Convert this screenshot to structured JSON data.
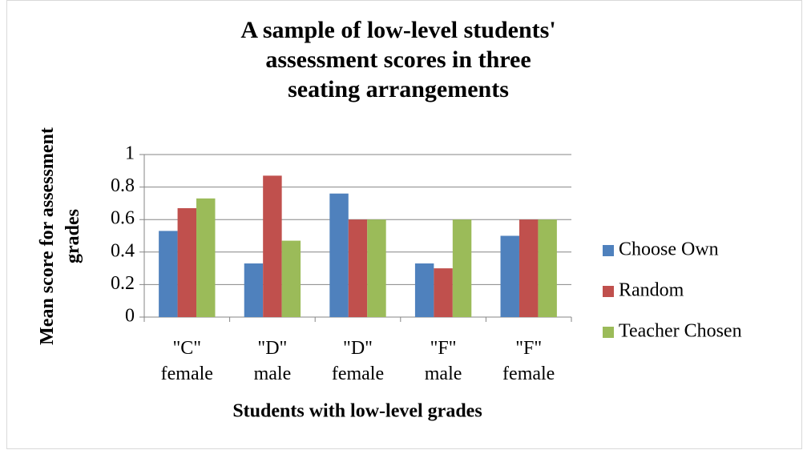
{
  "chart_data": {
    "type": "bar",
    "title": "A sample of low-level students'\nassessment scores in three\nseating arrangements",
    "xlabel": "Students with low-level grades",
    "ylabel": "Mean score for assessment\ngrades",
    "categories": [
      "\"C\"\nfemale",
      "\"D\"\nmale",
      "\"D\"\nfemale",
      "\"F\"\nmale",
      "\"F\"\nfemale"
    ],
    "series": [
      {
        "name": "Choose Own",
        "color": "#4f81bd",
        "values": [
          0.53,
          0.33,
          0.76,
          0.33,
          0.5
        ]
      },
      {
        "name": "Random",
        "color": "#c0504d",
        "values": [
          0.67,
          0.87,
          0.6,
          0.3,
          0.6
        ]
      },
      {
        "name": "Teacher Chosen",
        "color": "#9bbb59",
        "values": [
          0.73,
          0.47,
          0.6,
          0.6,
          0.6
        ]
      }
    ],
    "ylim": [
      0,
      1
    ],
    "yticks": [
      0,
      0.2,
      0.4,
      0.6,
      0.8,
      1
    ],
    "grid": true,
    "legend": "right"
  }
}
